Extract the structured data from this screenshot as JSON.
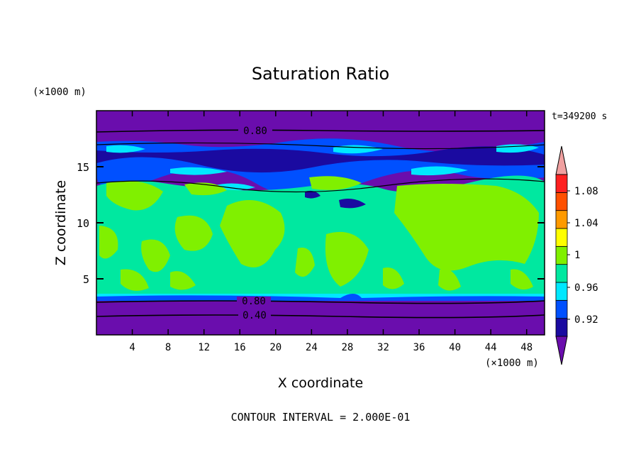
{
  "chart_data": {
    "type": "contour",
    "title": "Saturation Ratio",
    "xlabel": "X coordinate",
    "ylabel": "Z coordinate",
    "x_unit": "(×1000 m)",
    "y_unit": "(×1000 m)",
    "time_label": "t=349200 s",
    "footer": "CONTOUR INTERVAL = 2.000E-01",
    "xlim": [
      0,
      50
    ],
    "ylim": [
      0,
      20
    ],
    "x_ticks": [
      "4",
      "8",
      "12",
      "16",
      "20",
      "24",
      "28",
      "32",
      "36",
      "40",
      "44",
      "48"
    ],
    "y_ticks": [
      "5",
      "10",
      "15"
    ],
    "contour_labels": [
      "0.80",
      "0.80",
      "0.40"
    ],
    "colorbar": {
      "labels": [
        "0.92",
        "0.96",
        "1",
        "1.04",
        "1.08"
      ],
      "colors": [
        "#6a0dad",
        "#1a0aa0",
        "#0050ff",
        "#00e8ff",
        "#00e8a0",
        "#80f000",
        "#ffff00",
        "#ff9a00",
        "#ff5000",
        "#ff2020",
        "#f0a0a0"
      ]
    },
    "layers": [
      {
        "z_bottom": 0,
        "z_top": 2.2,
        "level": "<0.92"
      },
      {
        "z_bottom": 2.2,
        "z_top": 3.6,
        "level": "<0.92"
      },
      {
        "z_bottom": 3.6,
        "z_top": 14,
        "level": "0.96-1.04"
      },
      {
        "z_bottom": 14,
        "z_top": 17.5,
        "level": "0.92-1"
      },
      {
        "z_bottom": 17.5,
        "z_top": 20,
        "level": "<0.92"
      }
    ]
  }
}
